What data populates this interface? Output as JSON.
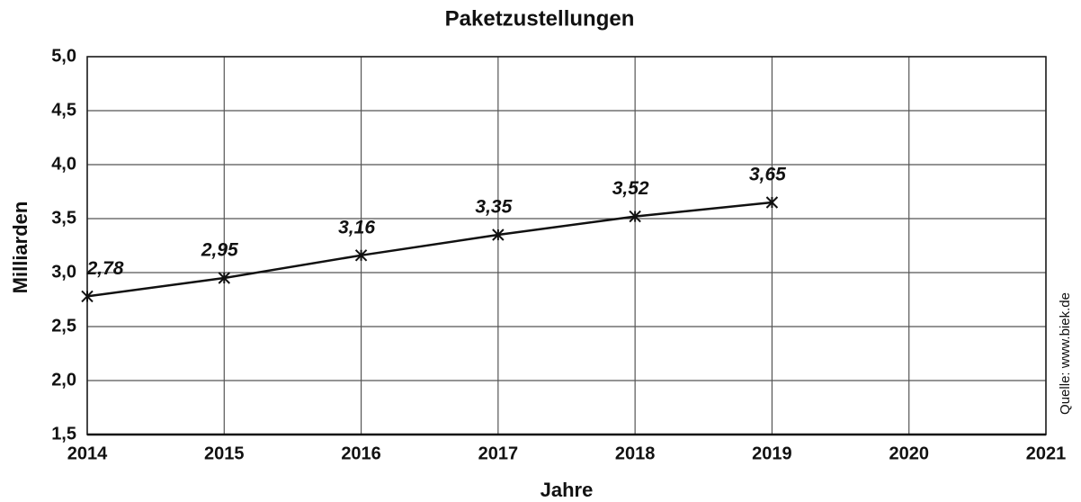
{
  "chart_data": {
    "type": "line",
    "title": "Paketzustellungen",
    "xlabel": "Jahre",
    "ylabel": "Milliarden",
    "annotation": "Quelle: www.biek.de",
    "x": [
      2014,
      2015,
      2016,
      2017,
      2018,
      2019
    ],
    "values": [
      2.78,
      2.95,
      3.16,
      3.35,
      3.52,
      3.65
    ],
    "value_labels": [
      "2,78",
      "2,95",
      "3,16",
      "3,35",
      "3,52",
      "3,65"
    ],
    "color": "#111111",
    "xlim": [
      2014,
      2021
    ],
    "xticks": [
      2014,
      2015,
      2016,
      2017,
      2018,
      2019,
      2020,
      2021
    ],
    "ylim": [
      1.5,
      5.0
    ],
    "yticks": [
      {
        "value": 1.5,
        "label": "1,5"
      },
      {
        "value": 2.0,
        "label": "2,0"
      },
      {
        "value": 2.5,
        "label": "2,5"
      },
      {
        "value": 3.0,
        "label": "3,0"
      },
      {
        "value": 3.5,
        "label": "3,5"
      },
      {
        "value": 4.0,
        "label": "4,0"
      },
      {
        "value": 4.5,
        "label": "4,5"
      },
      {
        "value": 5.0,
        "label": "5,0"
      }
    ],
    "grid": true
  }
}
